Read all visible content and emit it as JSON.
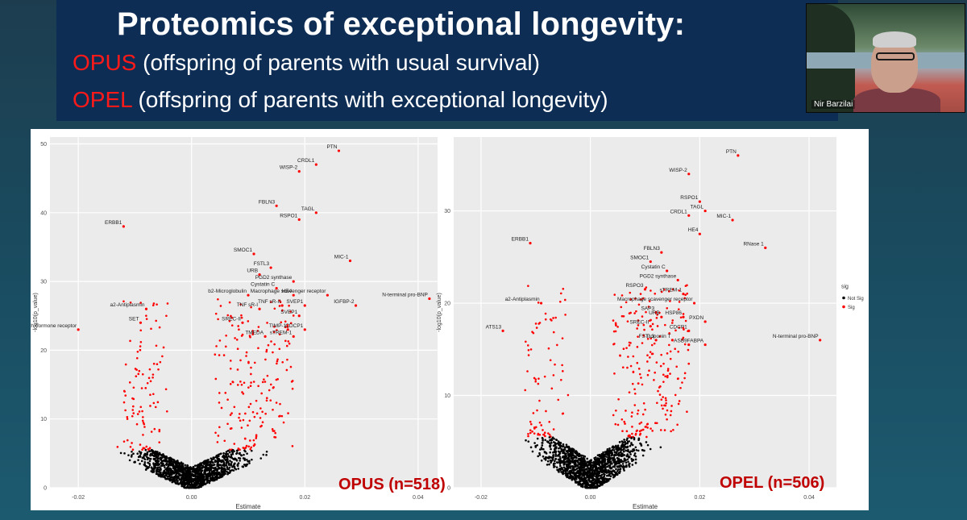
{
  "slide": {
    "title": "Proteomics of exceptional longevity:",
    "line1_key": "OPUS",
    "line1_text": " (offspring of parents with usual survival)",
    "line2_key": "OPEL",
    "line2_text": " (offspring of parents with exceptional longevity)"
  },
  "video": {
    "participant_name": "Nir Barzilai"
  },
  "colors": {
    "sig": "#ff0000",
    "not_sig": "#000000",
    "title_bg": "#0e2d54",
    "key_text": "#ff1a1a"
  },
  "chart_data": [
    {
      "type": "scatter",
      "title": "OPUS (n=518)",
      "xlabel": "Estimate",
      "ylabel": "-log10(p_value)",
      "xlim": [
        -0.025,
        0.045
      ],
      "ylim": [
        0,
        51
      ],
      "xticks": [
        "-0.02",
        "0.00",
        "0.02",
        "0.04"
      ],
      "xtick_values": [
        -0.02,
        0.0,
        0.02,
        0.04
      ],
      "yticks": [
        "0",
        "10",
        "20",
        "30",
        "40",
        "50"
      ],
      "ytick_values": [
        0,
        10,
        20,
        30,
        40,
        50
      ],
      "labeled_points": [
        {
          "label": "PTN",
          "x": 0.026,
          "y": 49
        },
        {
          "label": "CRDL1",
          "x": 0.022,
          "y": 47
        },
        {
          "label": "WISP-2",
          "x": 0.019,
          "y": 46
        },
        {
          "label": "FBLN3",
          "x": 0.015,
          "y": 41
        },
        {
          "label": "TAGL",
          "x": 0.022,
          "y": 40
        },
        {
          "label": "RSPO1",
          "x": 0.019,
          "y": 39
        },
        {
          "label": "ERBB1",
          "x": -0.012,
          "y": 38
        },
        {
          "label": "SMOC1",
          "x": 0.011,
          "y": 34
        },
        {
          "label": "MIC-1",
          "x": 0.028,
          "y": 33
        },
        {
          "label": "FSTL3",
          "x": 0.014,
          "y": 32
        },
        {
          "label": "URB",
          "x": 0.012,
          "y": 31
        },
        {
          "label": "PGD2 synthase",
          "x": 0.018,
          "y": 30
        },
        {
          "label": "Cystatin C",
          "x": 0.015,
          "y": 29
        },
        {
          "label": "HE4",
          "x": 0.018,
          "y": 28
        },
        {
          "label": "Macrophage scavenger receptor",
          "x": 0.024,
          "y": 28
        },
        {
          "label": "b2-Microglobulin",
          "x": 0.01,
          "y": 28
        },
        {
          "label": "N-terminal pro-BNP",
          "x": 0.042,
          "y": 27.5
        },
        {
          "label": "TNF sR-II",
          "x": 0.016,
          "y": 26.5
        },
        {
          "label": "SVEP1",
          "x": 0.02,
          "y": 26.5
        },
        {
          "label": "IGFBP-2",
          "x": 0.029,
          "y": 26.5
        },
        {
          "label": "a2-Antiplasmin",
          "x": -0.008,
          "y": 26
        },
        {
          "label": "TNF sR-I",
          "x": 0.012,
          "y": 26
        },
        {
          "label": "SVEP1",
          "x": 0.019,
          "y": 25
        },
        {
          "label": "SET",
          "x": -0.009,
          "y": 24
        },
        {
          "label": "SREC-II",
          "x": 0.009,
          "y": 24
        },
        {
          "label": "Growth hormone receptor",
          "x": -0.02,
          "y": 23
        },
        {
          "label": "TIMP-1",
          "x": 0.017,
          "y": 23
        },
        {
          "label": "CDCP1",
          "x": 0.02,
          "y": 23
        },
        {
          "label": "TMEDA",
          "x": 0.013,
          "y": 22
        },
        {
          "label": "sTREM-1",
          "x": 0.018,
          "y": 22
        }
      ]
    },
    {
      "type": "scatter",
      "title": "OPEL (n=506)",
      "xlabel": "Estimate",
      "ylabel": "-log10(p_value)",
      "xlim": [
        -0.025,
        0.045
      ],
      "ylim": [
        0,
        38
      ],
      "xticks": [
        "-0.02",
        "0.00",
        "0.02",
        "0.04"
      ],
      "xtick_values": [
        -0.02,
        0.0,
        0.02,
        0.04
      ],
      "yticks": [
        "0",
        "10",
        "20",
        "30"
      ],
      "ytick_values": [
        0,
        10,
        20,
        30
      ],
      "legend": {
        "title": "sig",
        "items": [
          "Not Sig",
          "Sig"
        ],
        "placement": "right"
      },
      "labeled_points": [
        {
          "label": "PTN",
          "x": 0.027,
          "y": 36
        },
        {
          "label": "WISP-2",
          "x": 0.018,
          "y": 34
        },
        {
          "label": "RSPO1",
          "x": 0.02,
          "y": 31
        },
        {
          "label": "TAGL",
          "x": 0.021,
          "y": 30
        },
        {
          "label": "CRDL1",
          "x": 0.018,
          "y": 29.5
        },
        {
          "label": "MIC-1",
          "x": 0.026,
          "y": 29
        },
        {
          "label": "HE4",
          "x": 0.02,
          "y": 27.5
        },
        {
          "label": "ERBB1",
          "x": -0.011,
          "y": 26.5
        },
        {
          "label": "RNase 1",
          "x": 0.032,
          "y": 26
        },
        {
          "label": "FBLN3",
          "x": 0.013,
          "y": 25.5
        },
        {
          "label": "SMOC1",
          "x": 0.011,
          "y": 24.5
        },
        {
          "label": "Cystatin C",
          "x": 0.014,
          "y": 23.5
        },
        {
          "label": "PGD2 synthase",
          "x": 0.016,
          "y": 22.5
        },
        {
          "label": "RSPO3",
          "x": 0.01,
          "y": 21.5
        },
        {
          "label": "sTREM-1",
          "x": 0.017,
          "y": 21
        },
        {
          "label": "Macrophage scavenger receptor",
          "x": 0.019,
          "y": 20
        },
        {
          "label": "a2-Antiplasmin",
          "x": -0.009,
          "y": 20
        },
        {
          "label": "SAP3",
          "x": 0.012,
          "y": 19
        },
        {
          "label": "URB",
          "x": 0.013,
          "y": 18.5
        },
        {
          "label": "HSP86",
          "x": 0.017,
          "y": 18.5
        },
        {
          "label": "PXDN",
          "x": 0.021,
          "y": 18
        },
        {
          "label": "SREC-II",
          "x": 0.011,
          "y": 17.5
        },
        {
          "label": "ATS13",
          "x": -0.016,
          "y": 17
        },
        {
          "label": "CDCP1",
          "x": 0.018,
          "y": 17
        },
        {
          "label": "FSTL3",
          "x": 0.012,
          "y": 16
        },
        {
          "label": "Troponin T",
          "x": 0.015,
          "y": 16
        },
        {
          "label": "N-terminal pro-BNP",
          "x": 0.042,
          "y": 16
        },
        {
          "label": "ASB9",
          "x": 0.018,
          "y": 15.5
        },
        {
          "label": "FABPA",
          "x": 0.021,
          "y": 15.5
        }
      ]
    }
  ]
}
